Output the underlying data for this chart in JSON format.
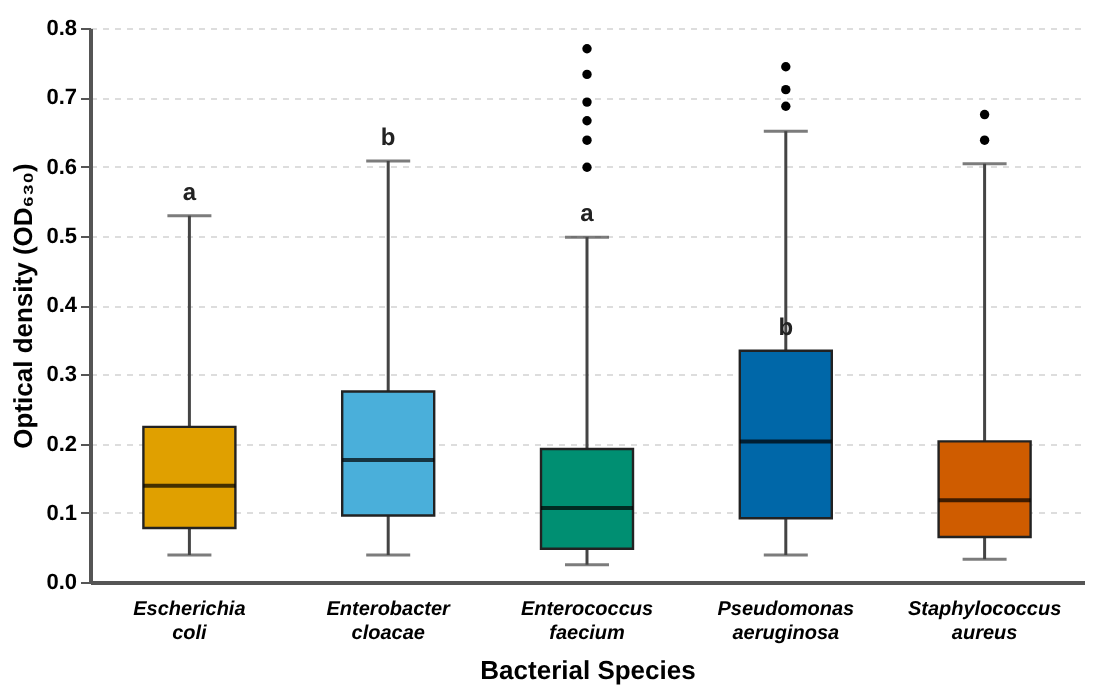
{
  "chart_data": {
    "type": "box",
    "xlabel": "Bacterial Species",
    "ylabel": "Optical density (OD₆₃₀)",
    "categories": [
      "Escherichia coli",
      "Enterobacter cloacae",
      "Enterococcus faecium",
      "Pseudomonas aeruginosa",
      "Staphylococcus aureus"
    ],
    "colors": [
      "#e0a000",
      "#4aafda",
      "#008f72",
      "#0067a8",
      "#cf5c00"
    ],
    "boxes": [
      {
        "low": 0.039,
        "q1": 0.078,
        "median": 0.139,
        "q3": 0.224,
        "high": 0.529
      },
      {
        "low": 0.039,
        "q1": 0.096,
        "median": 0.176,
        "q3": 0.275,
        "high": 0.608
      },
      {
        "low": 0.025,
        "q1": 0.048,
        "median": 0.107,
        "q3": 0.192,
        "high": 0.498,
        "outliers": [
          0.599,
          0.638,
          0.666,
          0.693,
          0.733,
          0.77
        ]
      },
      {
        "low": 0.039,
        "q1": 0.092,
        "median": 0.203,
        "q3": 0.334,
        "high": 0.651,
        "outliers": [
          0.687,
          0.711,
          0.744
        ]
      },
      {
        "low": 0.033,
        "q1": 0.065,
        "median": 0.118,
        "q3": 0.203,
        "high": 0.604,
        "outliers": [
          0.638,
          0.675
        ]
      }
    ],
    "ylim": [
      0,
      0.8
    ],
    "yticks": [
      {
        "value": 0,
        "label": "0.0"
      },
      0.1,
      0.2,
      0.3,
      0.4,
      0.5,
      0.6,
      0.7,
      0.8
    ],
    "grid": "y",
    "legend": false,
    "annotations": [
      {
        "text": "a",
        "x": "Escherichia coli",
        "y": 0.529
      },
      {
        "text": "b",
        "x": "Enterobacter cloacae",
        "y": 0.608
      },
      {
        "text": "a",
        "x": "Enterococcus faecium",
        "y": 0.498
      },
      {
        "text": "b",
        "x": "Pseudomonas aeruginosa",
        "y": 0.334
      }
    ]
  }
}
